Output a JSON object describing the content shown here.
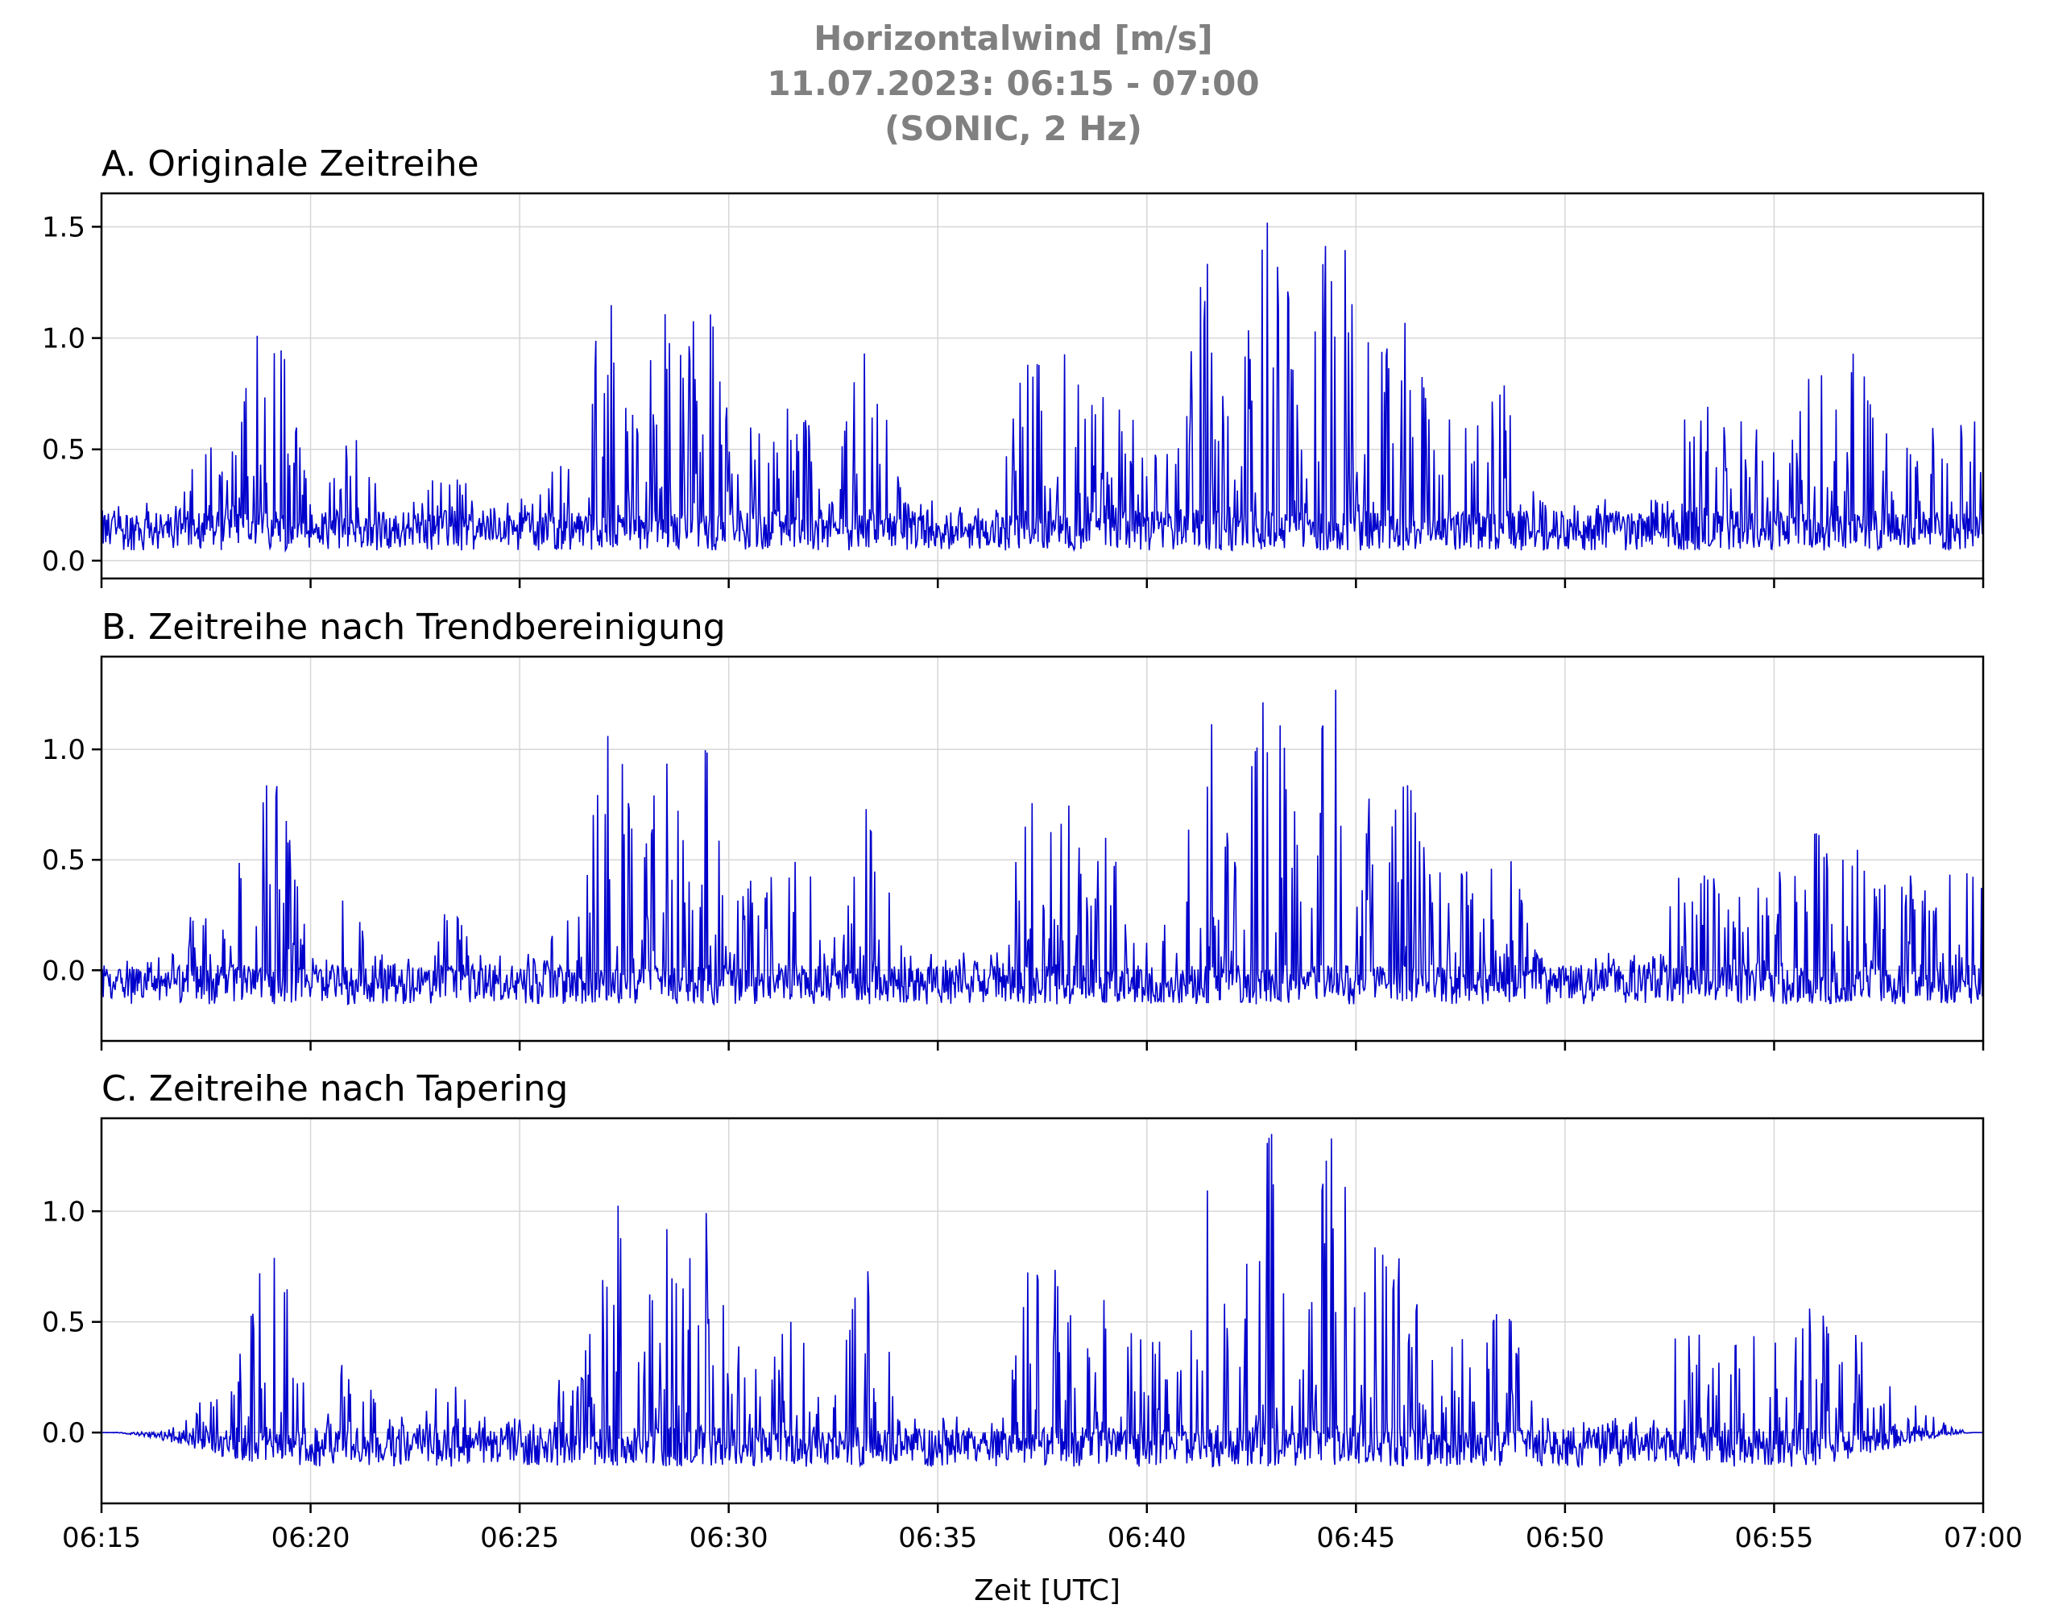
{
  "figure": {
    "title_lines": [
      "Horizontalwind [m/s]",
      "11.07.2023:  06:15 -  07:00",
      "(SONIC, 2 Hz)"
    ],
    "xlabel": "Zeit [UTC]",
    "line_color": "#0000cc"
  },
  "chart_data": [
    {
      "type": "line",
      "title": "A. Originale Zeitreihe",
      "xlabel": "",
      "ylabel": "",
      "x_unit": "time (HH:MM UTC)",
      "xlim": [
        "06:15",
        "07:00"
      ],
      "ylim": [
        -0.08,
        1.65
      ],
      "yticks": [
        0.0,
        0.5,
        1.0,
        1.5
      ],
      "ytick_labels": [
        "0.0",
        "0.5",
        "1.0",
        "1.5"
      ],
      "xticks": [
        "06:15",
        "06:20",
        "06:25",
        "06:30",
        "06:35",
        "06:40",
        "06:45",
        "06:50",
        "06:55",
        "07:00"
      ],
      "grid": true,
      "series": [
        {
          "values_note": "2 Hz sampled wind speed, peaks read from chart",
          "x": [
            "06:15",
            "06:17.5",
            "06:18.8",
            "06:19.1",
            "06:21.0",
            "06:23.3",
            "06:26.0",
            "06:27.2",
            "06:28.5",
            "06:29.4",
            "06:31.5",
            "06:33.3",
            "06:37.3",
            "06:38.0",
            "06:39.0",
            "06:41.5",
            "06:42.8",
            "06:43.0",
            "06:44.5",
            "06:45.5",
            "06:46.2",
            "06:48.5",
            "06:53.5",
            "06:56.0",
            "06:56.9",
            "06:58.5",
            "07:00"
          ],
          "y": [
            0.2,
            0.52,
            1.06,
            1.04,
            0.55,
            0.45,
            0.43,
            1.28,
            1.15,
            1.2,
            0.72,
            0.94,
            0.98,
            1.02,
            0.83,
            1.34,
            1.33,
            1.56,
            1.56,
            1.06,
            1.07,
            0.79,
            0.7,
            0.86,
            0.93,
            0.6,
            0.12
          ]
        }
      ]
    },
    {
      "type": "line",
      "title": "B. Zeitreihe nach Trendbereinigung",
      "xlabel": "",
      "ylabel": "",
      "x_unit": "time (HH:MM UTC)",
      "xlim": [
        "06:15",
        "07:00"
      ],
      "ylim": [
        -0.32,
        1.42
      ],
      "yticks": [
        0.0,
        0.5,
        1.0
      ],
      "ytick_labels": [
        "0.0",
        "0.5",
        "1.0"
      ],
      "xticks": [
        "06:15",
        "06:20",
        "06:25",
        "06:30",
        "06:35",
        "06:40",
        "06:45",
        "06:50",
        "06:55",
        "07:00"
      ],
      "grid": true,
      "series": [
        {
          "x": [
            "06:15",
            "06:17.5",
            "06:18.8",
            "06:19.1",
            "06:21.0",
            "06:23.3",
            "06:26.0",
            "06:27.2",
            "06:28.5",
            "06:29.4",
            "06:31.5",
            "06:33.3",
            "06:37.3",
            "06:38.0",
            "06:39.0",
            "06:41.5",
            "06:42.8",
            "06:43.0",
            "06:44.5",
            "06:45.5",
            "06:46.2",
            "06:48.5",
            "06:53.5",
            "06:56.0",
            "06:56.9",
            "06:58.5",
            "07:00"
          ],
          "y": [
            0.05,
            0.35,
            0.88,
            0.85,
            0.37,
            0.27,
            0.24,
            1.08,
            0.95,
            1.0,
            0.5,
            0.73,
            0.76,
            0.8,
            0.6,
            1.12,
            1.11,
            1.35,
            1.35,
            0.84,
            0.84,
            0.56,
            0.46,
            0.62,
            0.68,
            0.35,
            -0.2
          ]
        }
      ]
    },
    {
      "type": "line",
      "title": "C. Zeitreihe nach Tapering",
      "xlabel": "Zeit [UTC]",
      "ylabel": "",
      "x_unit": "time (HH:MM UTC)",
      "xlim": [
        "06:15",
        "07:00"
      ],
      "ylim": [
        -0.32,
        1.42
      ],
      "yticks": [
        0.0,
        0.5,
        1.0
      ],
      "ytick_labels": [
        "0.0",
        "0.5",
        "1.0"
      ],
      "xticks": [
        "06:15",
        "06:20",
        "06:25",
        "06:30",
        "06:35",
        "06:40",
        "06:45",
        "06:50",
        "06:55",
        "07:00"
      ],
      "grid": true,
      "series": [
        {
          "x": [
            "06:15",
            "06:17.5",
            "06:18.8",
            "06:19.1",
            "06:21.0",
            "06:23.3",
            "06:26.0",
            "06:27.2",
            "06:28.5",
            "06:29.4",
            "06:31.5",
            "06:33.3",
            "06:37.3",
            "06:38.0",
            "06:39.0",
            "06:41.5",
            "06:42.8",
            "06:43.0",
            "06:44.5",
            "06:45.5",
            "06:46.2",
            "06:48.5",
            "06:53.5",
            "06:56.0",
            "06:56.9",
            "06:58.5",
            "07:00"
          ],
          "y": [
            0.0,
            0.27,
            0.86,
            0.84,
            0.36,
            0.27,
            0.24,
            1.08,
            0.95,
            1.0,
            0.5,
            0.73,
            0.76,
            0.8,
            0.6,
            1.12,
            1.11,
            1.35,
            1.35,
            0.84,
            0.84,
            0.56,
            0.46,
            0.6,
            0.62,
            0.15,
            0.0
          ]
        }
      ]
    }
  ]
}
